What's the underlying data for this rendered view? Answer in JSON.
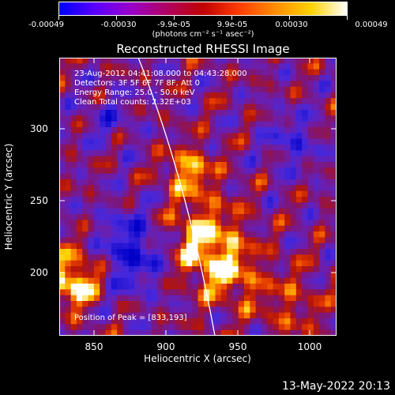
{
  "colorbar": {
    "tick_labels": [
      "-0.00049",
      "-0.00030",
      "-9.9e-05",
      "9.9e-05",
      "0.00030",
      "0.00049"
    ],
    "units": "(photons cm⁻² s⁻¹ asec⁻²)",
    "colors": [
      "#0000ff",
      "#5a00ff",
      "#9a00c8",
      "#b00060",
      "#c00000",
      "#ff3c00",
      "#ff8c00",
      "#ffd200",
      "#ffffff"
    ]
  },
  "title": "Reconstructed RHESSI Image",
  "info_lines": [
    "23-Aug-2012 04:41:08.000 to 04:43:28.000",
    "Detectors: 3F 5F 6F 7F 8F, Att 0",
    "Energy Range: 25.0 - 50.0 keV",
    "Clean     Total counts: 2.32E+03"
  ],
  "peak_label": "Position of Peak = [833,193]",
  "x_axis": {
    "label": "Heliocentric X (arcsec)",
    "ticks": [
      "850",
      "900",
      "950",
      "1000"
    ],
    "range": [
      826,
      1019
    ]
  },
  "y_axis": {
    "label": "Heliocentric Y (arcsec)",
    "ticks": [
      "200",
      "250",
      "300"
    ],
    "range": [
      155,
      348
    ]
  },
  "footer": "13-May-2022 20:13"
}
